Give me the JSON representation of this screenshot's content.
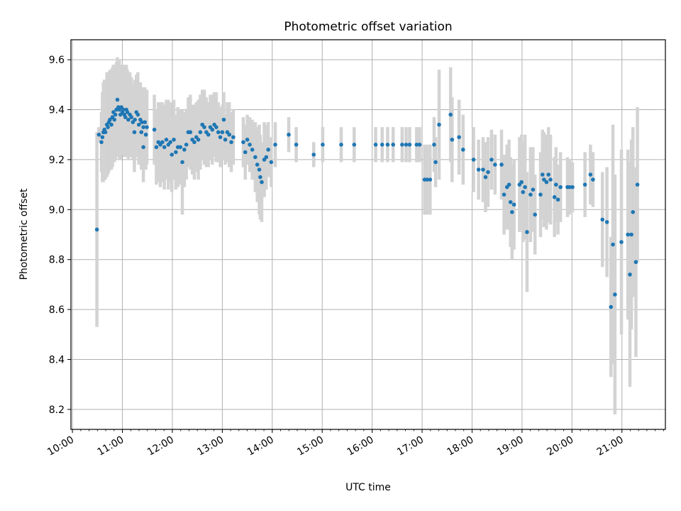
{
  "chart_data": {
    "type": "scatter",
    "title": "Photometric offset variation",
    "xlabel": "UTC time",
    "ylabel": "Photometric offset",
    "x_unit": "hours UTC",
    "xlim": [
      9.97,
      21.87
    ],
    "ylim": [
      8.12,
      9.68
    ],
    "xticks": [
      {
        "value": 10,
        "label": "10:00"
      },
      {
        "value": 11,
        "label": "11:00"
      },
      {
        "value": 12,
        "label": "12:00"
      },
      {
        "value": 13,
        "label": "13:00"
      },
      {
        "value": 14,
        "label": "14:00"
      },
      {
        "value": 15,
        "label": "15:00"
      },
      {
        "value": 16,
        "label": "16:00"
      },
      {
        "value": 17,
        "label": "17:00"
      },
      {
        "value": 18,
        "label": "18:00"
      },
      {
        "value": 19,
        "label": "19:00"
      },
      {
        "value": 20,
        "label": "20:00"
      },
      {
        "value": 21,
        "label": "21:00"
      }
    ],
    "yticks": [
      {
        "value": 8.2,
        "label": "8.2"
      },
      {
        "value": 8.4,
        "label": "8.4"
      },
      {
        "value": 8.6,
        "label": "8.6"
      },
      {
        "value": 8.8,
        "label": "8.8"
      },
      {
        "value": 9.0,
        "label": "9.0"
      },
      {
        "value": 9.2,
        "label": "9.2"
      },
      {
        "value": 9.4,
        "label": "9.4"
      },
      {
        "value": 9.6,
        "label": "9.6"
      }
    ],
    "grid": true,
    "minor_x_ticks": true,
    "colors": {
      "points": "#1f77b4",
      "errorbars": "#d3d3d3",
      "grid": "#b0b0b0"
    },
    "series": [
      {
        "marker": "point",
        "points": [
          [
            10.49,
            8.92,
            0.39
          ],
          [
            10.53,
            9.3,
            0.03
          ],
          [
            10.58,
            9.27,
            0.12
          ],
          [
            10.6,
            9.29,
            0.18
          ],
          [
            10.62,
            9.31,
            0.2
          ],
          [
            10.64,
            9.32,
            0.2
          ],
          [
            10.66,
            9.31,
            0.19
          ],
          [
            10.69,
            9.34,
            0.21
          ],
          [
            10.71,
            9.33,
            0.19
          ],
          [
            10.73,
            9.35,
            0.2
          ],
          [
            10.75,
            9.36,
            0.2
          ],
          [
            10.78,
            9.34,
            0.18
          ],
          [
            10.8,
            9.37,
            0.2
          ],
          [
            10.82,
            9.39,
            0.19
          ],
          [
            10.84,
            9.36,
            0.17
          ],
          [
            10.86,
            9.38,
            0.18
          ],
          [
            10.88,
            9.4,
            0.19
          ],
          [
            10.9,
            9.44,
            0.17
          ],
          [
            10.92,
            9.41,
            0.19
          ],
          [
            10.94,
            9.4,
            0.2
          ],
          [
            10.96,
            9.38,
            0.18
          ],
          [
            10.98,
            9.41,
            0.17
          ],
          [
            11.0,
            9.39,
            0.16
          ],
          [
            11.02,
            9.4,
            0.18
          ],
          [
            11.04,
            9.38,
            0.17
          ],
          [
            11.06,
            9.37,
            0.16
          ],
          [
            11.08,
            9.4,
            0.18
          ],
          [
            11.1,
            9.39,
            0.17
          ],
          [
            11.12,
            9.36,
            0.16
          ],
          [
            11.15,
            9.38,
            0.17
          ],
          [
            11.18,
            9.37,
            0.16
          ],
          [
            11.21,
            9.35,
            0.15
          ],
          [
            11.25,
            9.36,
            0.16
          ],
          [
            11.28,
            9.39,
            0.15
          ],
          [
            11.31,
            9.38,
            0.17
          ],
          [
            11.33,
            9.34,
            0.16
          ],
          [
            11.36,
            9.36,
            0.15
          ],
          [
            11.39,
            9.35,
            0.14
          ],
          [
            11.42,
            9.33,
            0.15
          ],
          [
            11.45,
            9.35,
            0.14
          ],
          [
            11.49,
            9.33,
            0.15
          ],
          [
            11.24,
            9.31,
            0.16
          ],
          [
            11.38,
            9.31,
            0.15
          ],
          [
            11.42,
            9.25,
            0.14
          ],
          [
            11.47,
            9.3,
            0.14
          ],
          [
            11.64,
            9.32,
            0.14
          ],
          [
            11.68,
            9.25,
            0.15
          ],
          [
            11.72,
            9.27,
            0.16
          ],
          [
            11.76,
            9.26,
            0.17
          ],
          [
            11.8,
            9.27,
            0.16
          ],
          [
            11.84,
            9.25,
            0.17
          ],
          [
            11.88,
            9.28,
            0.16
          ],
          [
            11.92,
            9.26,
            0.18
          ],
          [
            11.96,
            9.27,
            0.16
          ],
          [
            11.99,
            9.22,
            0.15
          ],
          [
            12.03,
            9.28,
            0.16
          ],
          [
            12.07,
            9.23,
            0.15
          ],
          [
            12.11,
            9.25,
            0.16
          ],
          [
            12.16,
            9.25,
            0.15
          ],
          [
            12.2,
            9.19,
            0.21
          ],
          [
            12.24,
            9.24,
            0.15
          ],
          [
            12.28,
            9.26,
            0.14
          ],
          [
            12.32,
            9.31,
            0.14
          ],
          [
            12.36,
            9.31,
            0.15
          ],
          [
            12.4,
            9.28,
            0.14
          ],
          [
            12.44,
            9.27,
            0.15
          ],
          [
            12.48,
            9.29,
            0.14
          ],
          [
            12.52,
            9.28,
            0.16
          ],
          [
            12.56,
            9.31,
            0.15
          ],
          [
            12.6,
            9.34,
            0.14
          ],
          [
            12.64,
            9.33,
            0.15
          ],
          [
            12.68,
            9.31,
            0.14
          ],
          [
            12.72,
            9.3,
            0.13
          ],
          [
            12.76,
            9.33,
            0.13
          ],
          [
            12.8,
            9.32,
            0.14
          ],
          [
            12.84,
            9.34,
            0.13
          ],
          [
            12.88,
            9.33,
            0.14
          ],
          [
            12.92,
            9.31,
            0.12
          ],
          [
            12.96,
            9.29,
            0.12
          ],
          [
            13.0,
            9.31,
            0.11
          ],
          [
            13.03,
            9.36,
            0.11
          ],
          [
            13.06,
            9.28,
            0.1
          ],
          [
            13.1,
            9.31,
            0.12
          ],
          [
            13.14,
            9.3,
            0.13
          ],
          [
            13.18,
            9.27,
            0.12
          ],
          [
            13.22,
            9.29,
            0.11
          ],
          [
            13.42,
            9.27,
            0.1
          ],
          [
            13.46,
            9.23,
            0.11
          ],
          [
            13.5,
            9.28,
            0.1
          ],
          [
            13.55,
            9.26,
            0.11
          ],
          [
            13.6,
            9.24,
            0.12
          ],
          [
            13.66,
            9.21,
            0.14
          ],
          [
            13.7,
            9.18,
            0.15
          ],
          [
            13.74,
            9.16,
            0.18
          ],
          [
            13.76,
            9.13,
            0.17
          ],
          [
            13.79,
            9.11,
            0.16
          ],
          [
            13.84,
            9.2,
            0.15
          ],
          [
            13.88,
            9.21,
            0.13
          ],
          [
            13.92,
            9.24,
            0.11
          ],
          [
            13.98,
            9.19,
            0.1
          ],
          [
            14.06,
            9.26,
            0.09
          ],
          [
            14.33,
            9.3,
            0.07
          ],
          [
            14.48,
            9.26,
            0.07
          ],
          [
            14.83,
            9.22,
            0.05
          ],
          [
            15.01,
            9.26,
            0.07
          ],
          [
            15.38,
            9.26,
            0.07
          ],
          [
            15.64,
            9.26,
            0.07
          ],
          [
            16.07,
            9.26,
            0.07
          ],
          [
            16.2,
            9.26,
            0.07
          ],
          [
            16.31,
            9.26,
            0.07
          ],
          [
            16.42,
            9.26,
            0.07
          ],
          [
            16.6,
            9.26,
            0.07
          ],
          [
            16.68,
            9.26,
            0.07
          ],
          [
            16.75,
            9.26,
            0.07
          ],
          [
            16.89,
            9.26,
            0.07
          ],
          [
            16.95,
            9.26,
            0.07
          ],
          [
            17.05,
            9.12,
            0.14
          ],
          [
            17.1,
            9.12,
            0.14
          ],
          [
            17.16,
            9.12,
            0.14
          ],
          [
            17.24,
            9.26,
            0.11
          ],
          [
            17.27,
            9.19,
            0.1
          ],
          [
            17.34,
            9.34,
            0.22
          ],
          [
            17.57,
            9.38,
            0.19
          ],
          [
            17.6,
            9.28,
            0.17
          ],
          [
            17.74,
            9.29,
            0.15
          ],
          [
            17.82,
            9.24,
            0.14
          ],
          [
            18.03,
            9.2,
            0.13
          ],
          [
            18.13,
            9.16,
            0.12
          ],
          [
            18.22,
            9.16,
            0.13
          ],
          [
            18.27,
            9.13,
            0.14
          ],
          [
            18.32,
            9.15,
            0.14
          ],
          [
            18.39,
            9.2,
            0.12
          ],
          [
            18.46,
            9.18,
            0.12
          ],
          [
            18.59,
            9.18,
            0.14
          ],
          [
            18.64,
            9.06,
            0.16
          ],
          [
            18.7,
            9.09,
            0.17
          ],
          [
            18.74,
            9.1,
            0.18
          ],
          [
            18.77,
            9.03,
            0.18
          ],
          [
            18.8,
            8.99,
            0.19
          ],
          [
            18.84,
            9.02,
            0.18
          ],
          [
            18.95,
            9.1,
            0.19
          ],
          [
            18.99,
            9.11,
            0.19
          ],
          [
            19.02,
            9.07,
            0.2
          ],
          [
            19.06,
            9.09,
            0.21
          ],
          [
            19.1,
            8.91,
            0.24
          ],
          [
            19.17,
            9.06,
            0.19
          ],
          [
            19.22,
            9.08,
            0.17
          ],
          [
            19.26,
            8.98,
            0.16
          ],
          [
            19.37,
            9.06,
            0.17
          ],
          [
            19.41,
            9.14,
            0.18
          ],
          [
            19.44,
            9.12,
            0.19
          ],
          [
            19.49,
            9.11,
            0.19
          ],
          [
            19.53,
            9.14,
            0.19
          ],
          [
            19.57,
            9.12,
            0.18
          ],
          [
            19.65,
            9.05,
            0.16
          ],
          [
            19.68,
            9.1,
            0.15
          ],
          [
            19.72,
            9.04,
            0.14
          ],
          [
            19.77,
            9.09,
            0.14
          ],
          [
            19.91,
            9.09,
            0.12
          ],
          [
            19.95,
            9.09,
            0.11
          ],
          [
            20.01,
            9.09,
            0.1
          ],
          [
            20.26,
            9.1,
            0.13
          ],
          [
            20.37,
            9.14,
            0.12
          ],
          [
            20.42,
            9.12,
            0.11
          ],
          [
            20.61,
            8.96,
            0.19
          ],
          [
            20.7,
            8.95,
            0.22
          ],
          [
            20.78,
            8.61,
            0.28
          ],
          [
            20.82,
            8.86,
            0.48
          ],
          [
            20.86,
            8.66,
            0.48
          ],
          [
            20.99,
            8.87,
            0.37
          ],
          [
            21.12,
            8.9,
            0.34
          ],
          [
            21.16,
            8.74,
            0.45
          ],
          [
            21.19,
            8.9,
            0.38
          ],
          [
            21.22,
            8.99,
            0.34
          ],
          [
            21.28,
            8.79,
            0.38
          ],
          [
            21.31,
            9.1,
            0.31
          ]
        ]
      }
    ]
  }
}
